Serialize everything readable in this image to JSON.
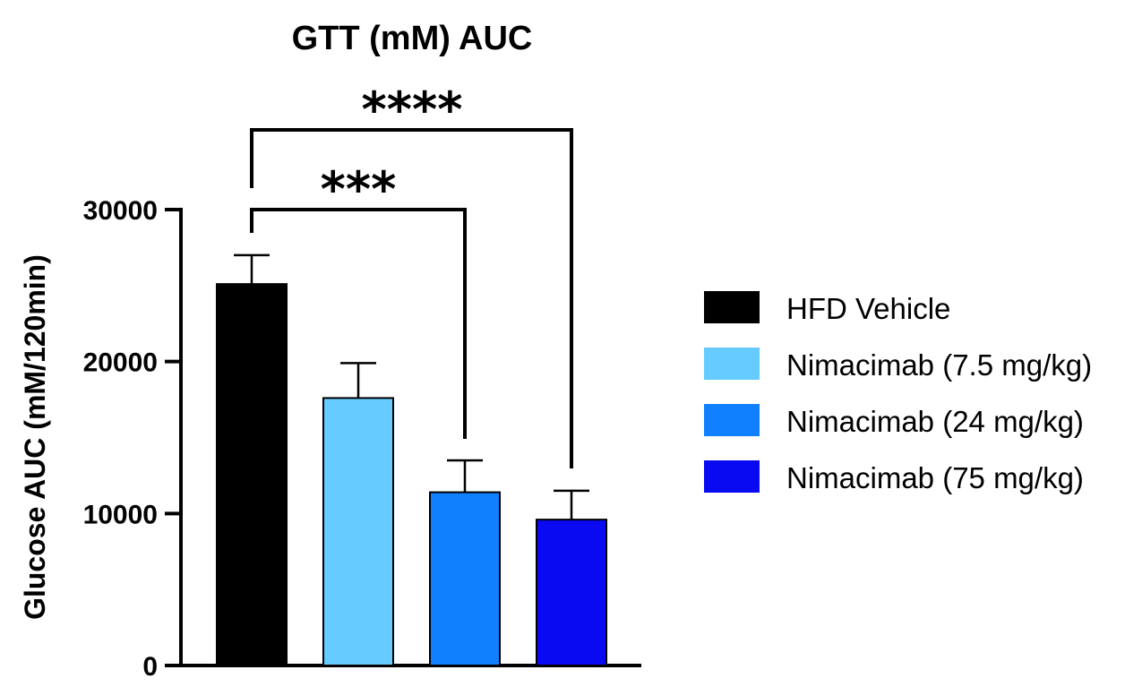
{
  "chart_data": {
    "type": "bar",
    "title": "GTT (mM) AUC",
    "xlabel": "",
    "ylabel": "Glucose AUC (mM/120min)",
    "ylim": [
      0,
      30000
    ],
    "yticks": [
      0,
      10000,
      20000,
      30000
    ],
    "ytick_labels": [
      "0",
      "10000",
      "20000",
      "30000"
    ],
    "categories": [
      "HFD Vehicle",
      "Nimacimab (7.5 mg/kg)",
      "Nimacimab (24 mg/kg)",
      "Nimacimab (75 mg/kg)"
    ],
    "values": [
      25100,
      17600,
      11400,
      9600
    ],
    "errors": [
      1900,
      2300,
      2100,
      1900
    ],
    "colors": [
      "#000000",
      "#66CCFF",
      "#1180FF",
      "#0A0AF2"
    ],
    "grid": false,
    "legend_position": "right",
    "significance": [
      {
        "from": 0,
        "to": 2,
        "label": "***"
      },
      {
        "from": 0,
        "to": 3,
        "label": "****"
      }
    ]
  }
}
